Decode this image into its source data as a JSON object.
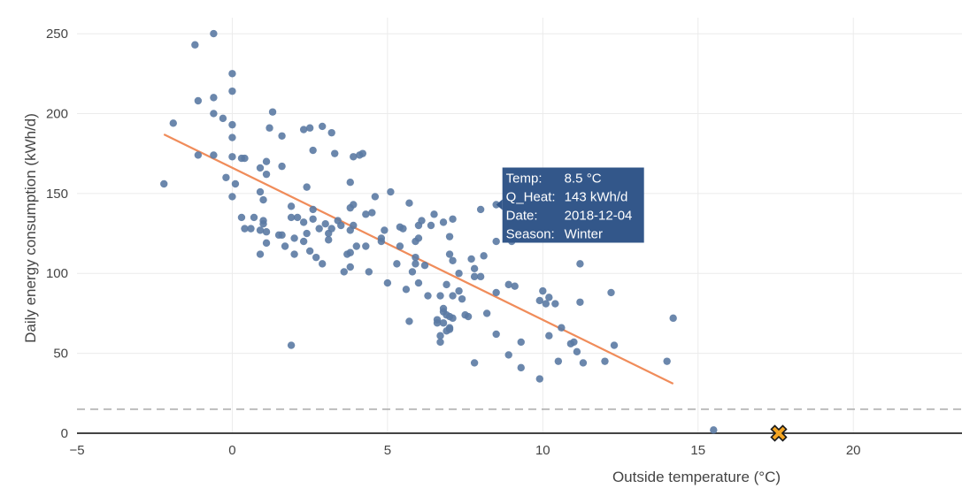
{
  "chart_data": {
    "type": "scatter",
    "title": "",
    "xlabel": "Outside temperature (°C)",
    "ylabel": "Daily energy consumption (kWh/d)",
    "xlim": [
      -5,
      23.5
    ],
    "ylim": [
      0,
      260
    ],
    "xticks": [
      -5,
      0,
      5,
      10,
      15,
      20
    ],
    "xtick_labels": [
      "−5",
      "0",
      "5",
      "10",
      "15",
      "20"
    ],
    "yticks": [
      0,
      50,
      100,
      150,
      200,
      250
    ],
    "ytick_labels": [
      "0",
      "50",
      "100",
      "150",
      "200",
      "250"
    ],
    "grid": true,
    "colors": {
      "points": "#5b7aa3",
      "fit": "#f08c5a",
      "threshold": "#aaaaaa",
      "marker": "#f5a623",
      "marker_edge": "#1a1a1a",
      "tooltip_bg": "#33578a",
      "grid": "#ebebeb",
      "zero_line": "#444444"
    },
    "threshold": {
      "y": 15,
      "style": "dashed"
    },
    "fit_line": {
      "x": [
        -2.2,
        14.2
      ],
      "y": [
        187,
        31
      ]
    },
    "special_marker": {
      "x": 17.6,
      "y": 0,
      "symbol": "x-cross"
    },
    "tooltip": {
      "point": {
        "x": 8.5,
        "y": 143
      },
      "rows": [
        {
          "label": "Temp:",
          "value": "8.5 °C"
        },
        {
          "label": "Q_Heat:",
          "value": "143 kWh/d"
        },
        {
          "label": "Date:",
          "value": "2018-12-04"
        },
        {
          "label": "Season:",
          "value": "Winter"
        }
      ]
    },
    "points": [
      [
        -0.6,
        250
      ],
      [
        -1.2,
        243
      ],
      [
        0.0,
        225
      ],
      [
        0.0,
        214
      ],
      [
        -0.6,
        210
      ],
      [
        -1.1,
        208
      ],
      [
        -0.6,
        200
      ],
      [
        -0.3,
        197
      ],
      [
        0.0,
        193
      ],
      [
        -1.9,
        194
      ],
      [
        0.0,
        185
      ],
      [
        -1.1,
        174
      ],
      [
        -0.6,
        174
      ],
      [
        -2.2,
        156
      ],
      [
        0.1,
        156
      ],
      [
        -0.2,
        160
      ],
      [
        0.0,
        148
      ],
      [
        0.3,
        172
      ],
      [
        0.4,
        172
      ],
      [
        0.9,
        166
      ],
      [
        1.1,
        170
      ],
      [
        1.1,
        162
      ],
      [
        1.2,
        191
      ],
      [
        1.3,
        201
      ],
      [
        1.6,
        186
      ],
      [
        1.6,
        167
      ],
      [
        0.9,
        151
      ],
      [
        1.0,
        146
      ],
      [
        0.3,
        135
      ],
      [
        0.7,
        135
      ],
      [
        1.0,
        133
      ],
      [
        1.0,
        131
      ],
      [
        0.4,
        128
      ],
      [
        0.6,
        128
      ],
      [
        0.9,
        127
      ],
      [
        1.1,
        126
      ],
      [
        1.1,
        119
      ],
      [
        0.9,
        112
      ],
      [
        1.6,
        124
      ],
      [
        1.7,
        117
      ],
      [
        1.9,
        142
      ],
      [
        1.9,
        135
      ],
      [
        2.1,
        135
      ],
      [
        2.3,
        132
      ],
      [
        2.0,
        122
      ],
      [
        2.3,
        120
      ],
      [
        2.4,
        125
      ],
      [
        2.5,
        114
      ],
      [
        2.7,
        110
      ],
      [
        2.9,
        106
      ],
      [
        2.4,
        154
      ],
      [
        2.3,
        190
      ],
      [
        2.5,
        191
      ],
      [
        2.6,
        177
      ],
      [
        2.9,
        192
      ],
      [
        3.2,
        188
      ],
      [
        3.3,
        175
      ],
      [
        2.6,
        140
      ],
      [
        2.6,
        134
      ],
      [
        2.8,
        128
      ],
      [
        3.0,
        131
      ],
      [
        3.1,
        125
      ],
      [
        3.1,
        121
      ],
      [
        3.2,
        128
      ],
      [
        3.4,
        133
      ],
      [
        3.5,
        130
      ],
      [
        3.6,
        101
      ],
      [
        3.7,
        112
      ],
      [
        3.8,
        104
      ],
      [
        3.8,
        113
      ],
      [
        3.8,
        141
      ],
      [
        3.9,
        143
      ],
      [
        3.8,
        157
      ],
      [
        3.9,
        173
      ],
      [
        4.1,
        174
      ],
      [
        4.2,
        175
      ],
      [
        3.9,
        130
      ],
      [
        3.8,
        127
      ],
      [
        4.0,
        117
      ],
      [
        4.4,
        101
      ],
      [
        4.3,
        117
      ],
      [
        4.3,
        137
      ],
      [
        4.5,
        138
      ],
      [
        4.6,
        148
      ],
      [
        4.8,
        122
      ],
      [
        4.8,
        120
      ],
      [
        4.9,
        127
      ],
      [
        5.1,
        151
      ],
      [
        5.0,
        94
      ],
      [
        5.3,
        106
      ],
      [
        5.4,
        117
      ],
      [
        5.4,
        129
      ],
      [
        5.5,
        128
      ],
      [
        5.7,
        144
      ],
      [
        5.6,
        90
      ],
      [
        5.7,
        70
      ],
      [
        5.8,
        101
      ],
      [
        5.9,
        106
      ],
      [
        5.9,
        110
      ],
      [
        5.9,
        120
      ],
      [
        6.0,
        122
      ],
      [
        6.0,
        130
      ],
      [
        6.0,
        94
      ],
      [
        6.1,
        133
      ],
      [
        6.2,
        105
      ],
      [
        6.3,
        86
      ],
      [
        6.4,
        130
      ],
      [
        6.5,
        137
      ],
      [
        6.6,
        71
      ],
      [
        6.6,
        69
      ],
      [
        6.7,
        86
      ],
      [
        6.8,
        132
      ],
      [
        6.8,
        78
      ],
      [
        6.8,
        76
      ],
      [
        6.7,
        61
      ],
      [
        6.7,
        57
      ],
      [
        6.8,
        69
      ],
      [
        6.9,
        93
      ],
      [
        6.9,
        74
      ],
      [
        7.0,
        73
      ],
      [
        6.9,
        64
      ],
      [
        7.0,
        66
      ],
      [
        7.0,
        65
      ],
      [
        7.1,
        72
      ],
      [
        7.1,
        86
      ],
      [
        7.0,
        112
      ],
      [
        7.1,
        108
      ],
      [
        7.0,
        123
      ],
      [
        7.1,
        134
      ],
      [
        7.3,
        100
      ],
      [
        7.3,
        89
      ],
      [
        7.4,
        84
      ],
      [
        7.5,
        74
      ],
      [
        7.6,
        73
      ],
      [
        7.8,
        44
      ],
      [
        7.7,
        109
      ],
      [
        7.8,
        103
      ],
      [
        7.8,
        98
      ],
      [
        8.0,
        98
      ],
      [
        8.0,
        140
      ],
      [
        8.1,
        111
      ],
      [
        8.2,
        75
      ],
      [
        8.5,
        62
      ],
      [
        8.5,
        120
      ],
      [
        8.5,
        88
      ],
      [
        8.5,
        143
      ],
      [
        8.9,
        93
      ],
      [
        8.9,
        49
      ],
      [
        9.1,
        92
      ],
      [
        9.0,
        120
      ],
      [
        9.3,
        57
      ],
      [
        9.3,
        41
      ],
      [
        9.9,
        83
      ],
      [
        10.0,
        89
      ],
      [
        10.1,
        81
      ],
      [
        10.2,
        85
      ],
      [
        10.4,
        81
      ],
      [
        10.2,
        61
      ],
      [
        9.9,
        34
      ],
      [
        10.5,
        45
      ],
      [
        10.6,
        66
      ],
      [
        10.9,
        56
      ],
      [
        11.0,
        57
      ],
      [
        11.2,
        82
      ],
      [
        11.1,
        51
      ],
      [
        11.3,
        44
      ],
      [
        11.2,
        106
      ],
      [
        12.0,
        45
      ],
      [
        12.3,
        55
      ],
      [
        12.2,
        88
      ],
      [
        14.0,
        45
      ],
      [
        14.2,
        72
      ],
      [
        15.5,
        2
      ],
      [
        1.9,
        55
      ],
      [
        1.5,
        124
      ],
      [
        0.0,
        173
      ],
      [
        2.0,
        112
      ]
    ]
  }
}
